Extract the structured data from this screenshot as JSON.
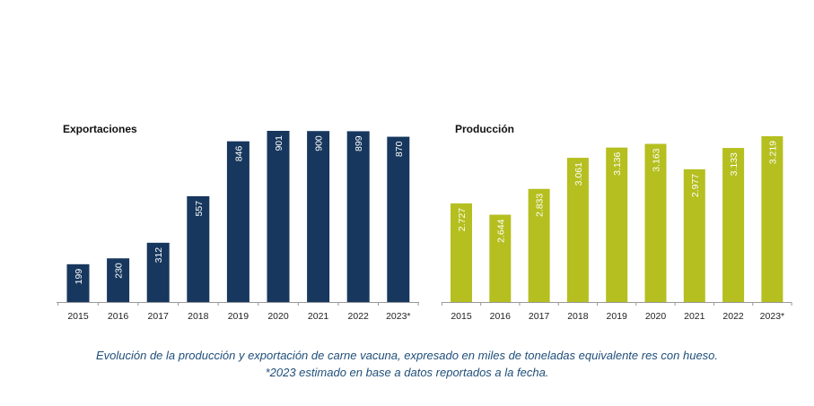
{
  "chart_data": [
    {
      "type": "bar",
      "title": "Exportaciones",
      "categories": [
        "2015",
        "2016",
        "2017",
        "2018",
        "2019",
        "2020",
        "2021",
        "2022",
        "2023*"
      ],
      "values": [
        199,
        230,
        312,
        557,
        846,
        901,
        900,
        899,
        870
      ],
      "value_labels": [
        "199",
        "230",
        "312",
        "557",
        "846",
        "901",
        "900",
        "899",
        "870"
      ],
      "ylim": [
        0,
        901
      ],
      "color": "#17375e",
      "grid": false
    },
    {
      "type": "bar",
      "title": "Producción",
      "categories": [
        "2015",
        "2016",
        "2017",
        "2018",
        "2019",
        "2020",
        "2021",
        "2022",
        "2023*"
      ],
      "values": [
        2.727,
        2.644,
        2.833,
        3.061,
        3.136,
        3.163,
        2.977,
        3.133,
        3.219
      ],
      "value_labels": [
        "2.727",
        "2.644",
        "2.833",
        "3.061",
        "3.136",
        "3.163",
        "2.977",
        "3.133",
        "3.219"
      ],
      "ylim": [
        2.004,
        3.219
      ],
      "color": "#b5bf1f",
      "grid": false
    }
  ],
  "caption": {
    "line1": "Evolución de la producción y exportación de carne vacuna, expresado en miles de toneladas equivalente res con hueso.",
    "line2": "*2023 estimado en base a datos reportados a la fecha."
  }
}
